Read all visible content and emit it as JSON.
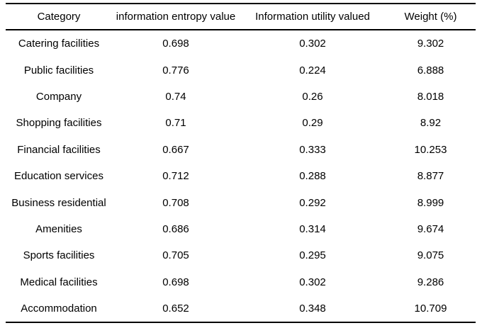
{
  "colors": {
    "background": "#ffffff",
    "text": "#000000",
    "rule": "#000000"
  },
  "table": {
    "columns": [
      "Category",
      "information entropy value",
      "Information utility valued",
      "Weight (%)"
    ],
    "rows": [
      {
        "category": "Catering facilities",
        "entropy": "0.698",
        "utility": "0.302",
        "weight": "9.302"
      },
      {
        "category": "Public facilities",
        "entropy": "0.776",
        "utility": "0.224",
        "weight": "6.888"
      },
      {
        "category": "Company",
        "entropy": "0.74",
        "utility": "0.26",
        "weight": "8.018"
      },
      {
        "category": "Shopping facilities",
        "entropy": "0.71",
        "utility": "0.29",
        "weight": "8.92"
      },
      {
        "category": "Financial facilities",
        "entropy": "0.667",
        "utility": "0.333",
        "weight": "10.253"
      },
      {
        "category": "Education services",
        "entropy": "0.712",
        "utility": "0.288",
        "weight": "8.877"
      },
      {
        "category": "Business residential",
        "entropy": "0.708",
        "utility": "0.292",
        "weight": "8.999"
      },
      {
        "category": "Amenities",
        "entropy": "0.686",
        "utility": "0.314",
        "weight": "9.674"
      },
      {
        "category": "Sports facilities",
        "entropy": "0.705",
        "utility": "0.295",
        "weight": "9.075"
      },
      {
        "category": "Medical facilities",
        "entropy": "0.698",
        "utility": "0.302",
        "weight": "9.286"
      },
      {
        "category": "Accommodation",
        "entropy": "0.652",
        "utility": "0.348",
        "weight": "10.709"
      }
    ]
  }
}
